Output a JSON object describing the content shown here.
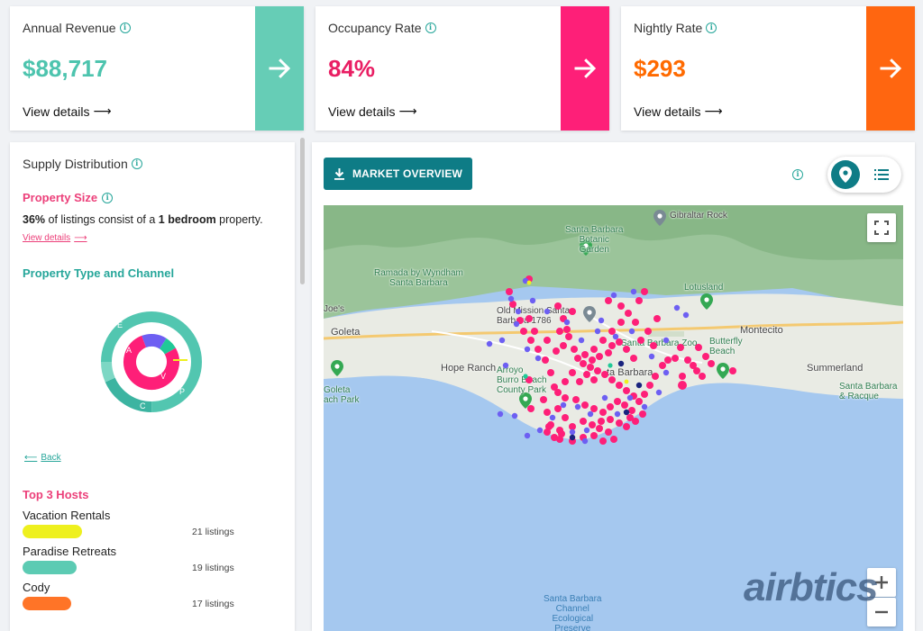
{
  "kpis": [
    {
      "title": "Annual Revenue",
      "value": "$88,717",
      "details": "View details",
      "color": "#4dc4ae",
      "accent": "#66cdb6"
    },
    {
      "title": "Occupancy Rate",
      "value": "84%",
      "details": "View details",
      "color": "#e91e63",
      "accent": "#fe1f78"
    },
    {
      "title": "Nightly Rate",
      "value": "$293",
      "details": "View details",
      "color": "#ff6a00",
      "accent": "#ff6610"
    }
  ],
  "supply": {
    "title": "Supply Distribution",
    "property_size": {
      "title": "Property Size",
      "pct": "36%",
      "text_mid": " of listings consist of a ",
      "bedrooms": "1 bedroom",
      "text_end": " property.",
      "link": "View details"
    },
    "type_channel": {
      "title": "Property Type and Channel",
      "outer_labels": {
        "e": "E",
        "p": "P",
        "c": "C"
      },
      "inner_labels": {
        "a": "A",
        "v": "V"
      }
    },
    "back_label": "Back"
  },
  "top_hosts": {
    "title": "Top 3 Hosts",
    "hosts": [
      {
        "name": "Vacation Rentals",
        "count": "21 listings",
        "color": "#eef01e",
        "fill": 1.0
      },
      {
        "name": "Paradise Retreats",
        "count": "19 listings",
        "color": "#5ccbb3",
        "fill": 0.905
      },
      {
        "name": "Cody",
        "count": "17 listings",
        "color": "#ff7427",
        "fill": 0.81
      }
    ]
  },
  "main": {
    "market_overview": "MARKET OVERVIEW",
    "map_labels": {
      "gibraltar": "Gibraltar Rock",
      "botanic": "Santa Barbara\nBotanic\nGarden",
      "ramada": "Ramada by Wyndham\nSanta Barbara",
      "lotusland": "Lotusland",
      "mission": "Old Mission Santa\nBarbara 1786",
      "goleta": "Goleta",
      "montecito": "Montecito",
      "zoo": "Santa Barbara Zoo",
      "butterfly": "Butterfly\nBeach",
      "hope_ranch": "Hope Ranch",
      "arroyo": "Arroyo\nBurro Beach\nCounty Park",
      "summerland": "Summerland",
      "sb_racquet": "Santa Barbara\n& Racque",
      "goleta_park": "Goleta\nach Park",
      "joes": "Joe's",
      "santa_b": "ta Barbara",
      "channel": "Santa Barbara\nChannel\nEcological\nPreserve"
    },
    "watermark": "airbtics"
  }
}
